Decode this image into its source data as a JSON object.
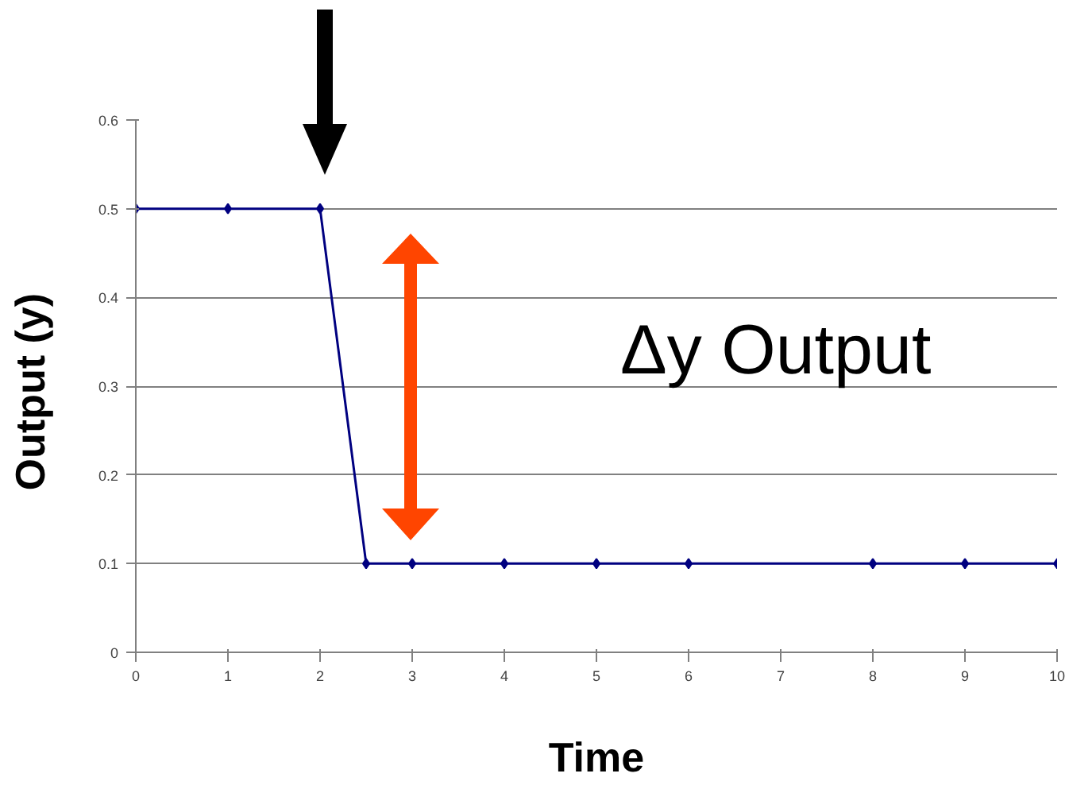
{
  "chart_data": {
    "type": "line",
    "xlabel": "Time",
    "ylabel": "Output  (y)",
    "x": [
      0,
      1,
      2,
      2.5,
      3,
      4,
      5,
      6,
      8,
      9,
      10
    ],
    "series": [
      {
        "color": "#000080",
        "values": [
          0.5,
          0.5,
          0.5,
          0.1,
          0.1,
          0.1,
          0.1,
          0.1,
          0.1,
          0.1,
          0.1
        ]
      }
    ],
    "xlim": [
      0,
      10
    ],
    "ylim": [
      0,
      0.6
    ],
    "xticks": [
      0,
      1,
      2,
      3,
      4,
      5,
      6,
      7,
      8,
      9,
      10
    ],
    "yticks": [
      0,
      0.1,
      0.2,
      0.3,
      0.4,
      0.5,
      0.6
    ],
    "grid": "y",
    "marker": "diamond",
    "line_style": "solid",
    "annotations": [
      "Δy Output"
    ]
  }
}
